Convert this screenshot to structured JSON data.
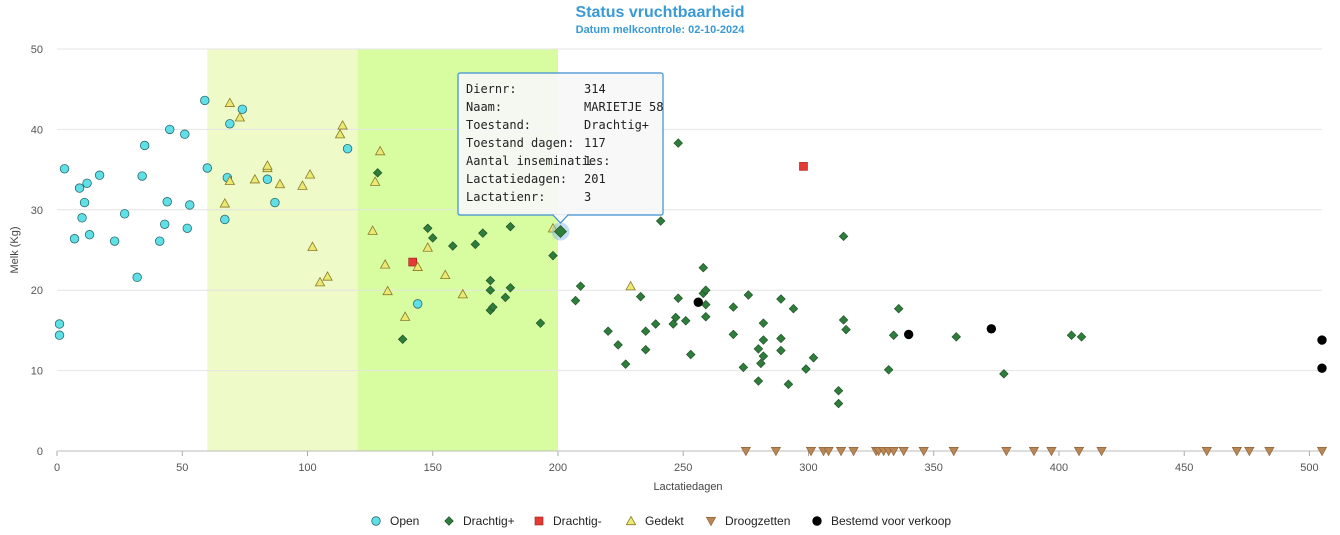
{
  "chart_data": {
    "type": "scatter",
    "title": "Status vruchtbaarheid",
    "subtitle": "Datum melkcontrole: 02-10-2024",
    "xlabel": "Lactatiedagen",
    "ylabel": "Melk (Kg)",
    "xlim": [
      0,
      505
    ],
    "ylim": [
      0,
      50
    ],
    "xticks": [
      0,
      50,
      100,
      150,
      200,
      250,
      300,
      350,
      400,
      450,
      500
    ],
    "yticks": [
      0,
      10,
      20,
      30,
      40,
      50
    ],
    "grid": true,
    "legend_position": "bottom-center",
    "bands": [
      {
        "from": 60,
        "to": 120,
        "color": "#eefac8"
      },
      {
        "from": 120,
        "to": 200,
        "color": "#d8fda0"
      }
    ],
    "series": [
      {
        "name": "Open",
        "marker": "circle",
        "color": "#5fe0e6",
        "points": [
          [
            1,
            15.8
          ],
          [
            1,
            14.4
          ],
          [
            3,
            35.1
          ],
          [
            7,
            26.4
          ],
          [
            9,
            32.7
          ],
          [
            10,
            29
          ],
          [
            11,
            30.9
          ],
          [
            12,
            33.3
          ],
          [
            13,
            26.9
          ],
          [
            17,
            34.3
          ],
          [
            23,
            26.1
          ],
          [
            27,
            29.5
          ],
          [
            32,
            21.6
          ],
          [
            34,
            34.2
          ],
          [
            35,
            38
          ],
          [
            41,
            26.1
          ],
          [
            43,
            28.2
          ],
          [
            44,
            31
          ],
          [
            45,
            40
          ],
          [
            51,
            39.4
          ],
          [
            52,
            27.7
          ],
          [
            53,
            30.6
          ],
          [
            59,
            43.6
          ],
          [
            60,
            35.2
          ],
          [
            67,
            28.8
          ],
          [
            68,
            34
          ],
          [
            69,
            40.7
          ],
          [
            74,
            42.5
          ],
          [
            84,
            33.8
          ],
          [
            87,
            30.9
          ],
          [
            116,
            37.6
          ],
          [
            144,
            18.3
          ]
        ]
      },
      {
        "name": "Drachtig+",
        "marker": "diamond",
        "color": "#2e7d3a",
        "points": [
          [
            128,
            34.6
          ],
          [
            138,
            13.9
          ],
          [
            148,
            27.7
          ],
          [
            150,
            26.5
          ],
          [
            158,
            25.5
          ],
          [
            167,
            25.7
          ],
          [
            170,
            27.1
          ],
          [
            173,
            21.2
          ],
          [
            173,
            20
          ],
          [
            173,
            17.5
          ],
          [
            174,
            17.9
          ],
          [
            179,
            19.1
          ],
          [
            181,
            20.3
          ],
          [
            181,
            27.9
          ],
          [
            193,
            15.9
          ],
          [
            198,
            24.3
          ],
          [
            201,
            27.3
          ],
          [
            207,
            18.7
          ],
          [
            209,
            20.5
          ],
          [
            220,
            14.9
          ],
          [
            224,
            13.2
          ],
          [
            227,
            10.8
          ],
          [
            233,
            19.2
          ],
          [
            235,
            14.9
          ],
          [
            235,
            12.6
          ],
          [
            239,
            15.8
          ],
          [
            241,
            28.6
          ],
          [
            246,
            15.8
          ],
          [
            247,
            16.6
          ],
          [
            248,
            19
          ],
          [
            248,
            38.3
          ],
          [
            251,
            16.2
          ],
          [
            253,
            12
          ],
          [
            258,
            22.8
          ],
          [
            258,
            19.6
          ],
          [
            259,
            18.2
          ],
          [
            259,
            16.7
          ],
          [
            259,
            20
          ],
          [
            270,
            14.5
          ],
          [
            270,
            17.9
          ],
          [
            274,
            10.4
          ],
          [
            276,
            19.4
          ],
          [
            280,
            12.7
          ],
          [
            280,
            8.7
          ],
          [
            281,
            10.9
          ],
          [
            282,
            11.8
          ],
          [
            282,
            13.8
          ],
          [
            282,
            15.9
          ],
          [
            289,
            18.9
          ],
          [
            289,
            14
          ],
          [
            289,
            12.5
          ],
          [
            292,
            8.3
          ],
          [
            294,
            17.7
          ],
          [
            299,
            10.2
          ],
          [
            302,
            11.6
          ],
          [
            312,
            7.5
          ],
          [
            312,
            5.9
          ],
          [
            314,
            26.7
          ],
          [
            314,
            16.3
          ],
          [
            315,
            15.1
          ],
          [
            332,
            10.1
          ],
          [
            334,
            14.4
          ],
          [
            336,
            17.7
          ],
          [
            359,
            14.2
          ],
          [
            378,
            9.6
          ],
          [
            405,
            14.4
          ],
          [
            409,
            14.2
          ]
        ]
      },
      {
        "name": "Drachtig-",
        "marker": "square",
        "color": "#e53a33",
        "points": [
          [
            142,
            23.5
          ],
          [
            298,
            35.4
          ]
        ]
      },
      {
        "name": "Gedekt",
        "marker": "triangle",
        "color": "#eaea73",
        "points": [
          [
            67,
            30.8
          ],
          [
            69,
            33.6
          ],
          [
            69,
            43.3
          ],
          [
            73,
            41.5
          ],
          [
            79,
            33.8
          ],
          [
            84,
            35.2
          ],
          [
            84,
            35.5
          ],
          [
            89,
            33.2
          ],
          [
            98,
            33
          ],
          [
            101,
            34.4
          ],
          [
            102,
            25.4
          ],
          [
            105,
            21
          ],
          [
            108,
            21.7
          ],
          [
            113,
            39.4
          ],
          [
            114,
            40.5
          ],
          [
            126,
            27.4
          ],
          [
            127,
            33.5
          ],
          [
            129,
            37.3
          ],
          [
            131,
            23.2
          ],
          [
            132,
            19.9
          ],
          [
            139,
            16.7
          ],
          [
            144,
            22.9
          ],
          [
            148,
            25.3
          ],
          [
            155,
            21.9
          ],
          [
            162,
            19.5
          ],
          [
            198,
            27.7
          ],
          [
            229,
            20.5
          ]
        ]
      },
      {
        "name": "Droogzetten",
        "marker": "triangle-down",
        "color": "#b98756",
        "points": [
          [
            275,
            0
          ],
          [
            287,
            0
          ],
          [
            301,
            0
          ],
          [
            306,
            0
          ],
          [
            308,
            0
          ],
          [
            313,
            0
          ],
          [
            318,
            0
          ],
          [
            327,
            0
          ],
          [
            328,
            0
          ],
          [
            330,
            0
          ],
          [
            332,
            0
          ],
          [
            334,
            0
          ],
          [
            338,
            0
          ],
          [
            346,
            0
          ],
          [
            358,
            0
          ],
          [
            379,
            0
          ],
          [
            390,
            0
          ],
          [
            397,
            0
          ],
          [
            408,
            0
          ],
          [
            417,
            0
          ],
          [
            459,
            0
          ],
          [
            471,
            0
          ],
          [
            476,
            0
          ],
          [
            484,
            0
          ],
          [
            505,
            0
          ]
        ]
      },
      {
        "name": "Bestemd voor verkoop",
        "marker": "circle",
        "color": "#000000",
        "points": [
          [
            256,
            18.5
          ],
          [
            340,
            14.5
          ],
          [
            373,
            15.2
          ],
          [
            505,
            13.8
          ],
          [
            505,
            10.3
          ]
        ]
      }
    ],
    "highlight_point": {
      "series": "Drachtig+",
      "x": 201,
      "y": 27.3
    },
    "tooltip": {
      "rows": [
        {
          "label": "Diernr:",
          "value": "314"
        },
        {
          "label": "Naam:",
          "value": "MARIETJE 58"
        },
        {
          "label": "Toestand:",
          "value": "Drachtig+"
        },
        {
          "label": "Toestand dagen:",
          "value": "117"
        },
        {
          "label": "Aantal inseminaties:",
          "value": "1"
        },
        {
          "label": "Lactatiedagen:",
          "value": "201"
        },
        {
          "label": "Lactatienr:",
          "value": "3"
        }
      ]
    }
  }
}
